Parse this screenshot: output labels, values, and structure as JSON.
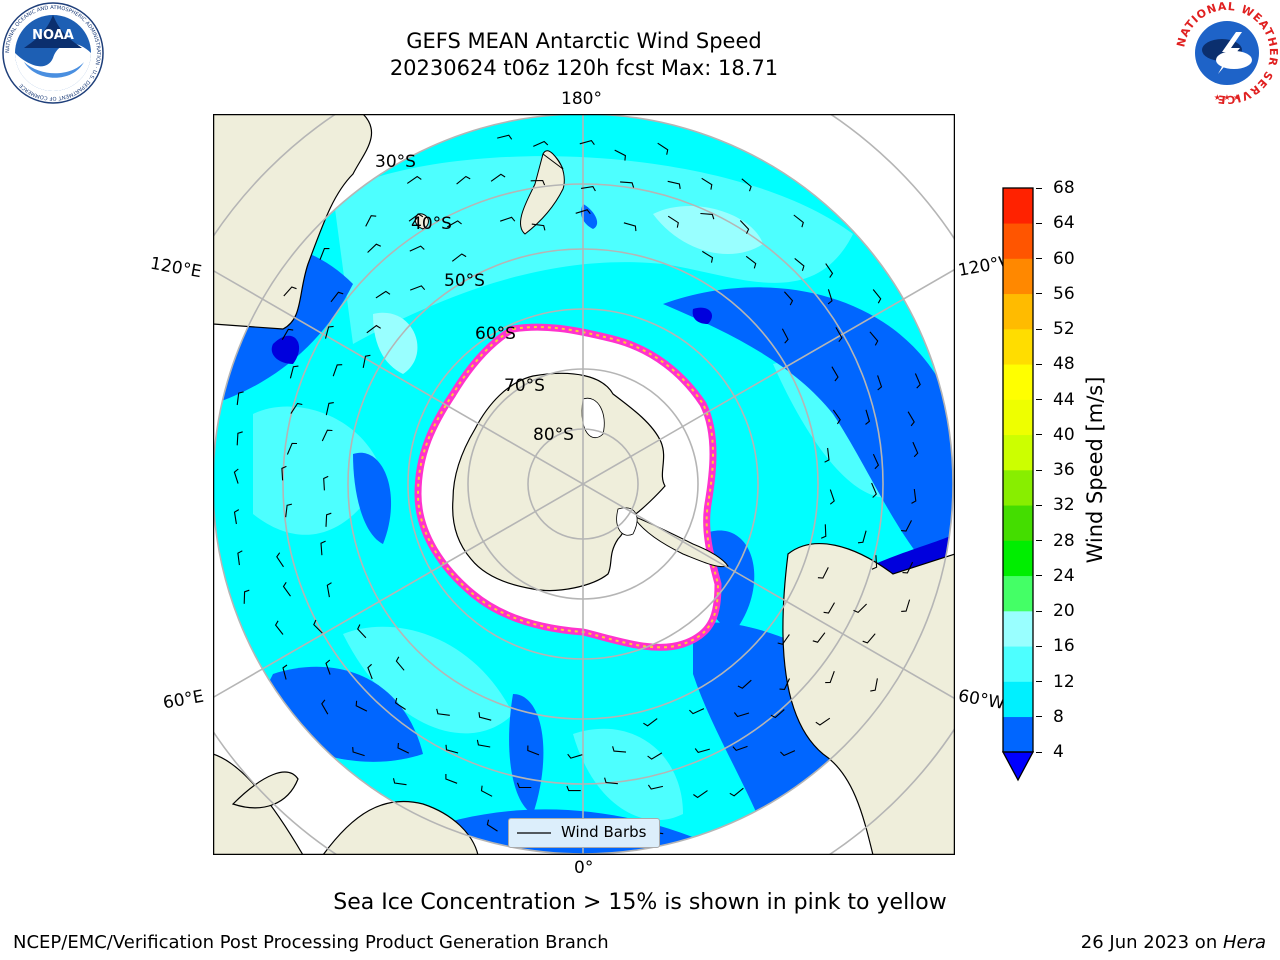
{
  "title": {
    "line1": "GEFS MEAN Antarctic Wind Speed",
    "line2": "20230624 t06z 120h fcst   Max: 18.71"
  },
  "map": {
    "projection": "south-polar-stereographic",
    "longitude_labels": {
      "top": "180°",
      "bottom": "0°",
      "upper_left": "120°E",
      "upper_right": "120°W",
      "lower_left": "60°E",
      "lower_right": "60°W"
    },
    "latitude_labels": [
      "30°S",
      "40°S",
      "50°S",
      "60°S",
      "70°S",
      "80°S"
    ],
    "colors": {
      "land": "#efeedb",
      "antarctica": "#efeedb",
      "sea_ice": "#ffffff",
      "wind_4_8": "#0066ff",
      "wind_8_12": "#00ffff",
      "wind_12_16": "#4dffff",
      "wind_16_20": "#99ffff",
      "ice_edge": "#ff33cc"
    }
  },
  "colorbar": {
    "label": "Wind Speed [m/s]",
    "ticks": [
      "4",
      "8",
      "12",
      "16",
      "20",
      "24",
      "28",
      "32",
      "36",
      "40",
      "44",
      "48",
      "52",
      "56",
      "60",
      "64",
      "68"
    ],
    "colors": [
      "#0066ff",
      "#00f0ff",
      "#4dffff",
      "#99ffff",
      "#44ff66",
      "#00ee00",
      "#44dd00",
      "#88ee00",
      "#ccff00",
      "#eeff00",
      "#ffff00",
      "#ffdd00",
      "#ffbb00",
      "#ff8800",
      "#ff5500",
      "#ff2200"
    ],
    "extend_color": "#0000ff"
  },
  "legend": {
    "label": "Wind Barbs"
  },
  "caption": "Sea Ice Concentration > 15% is shown in pink to yellow",
  "footer": {
    "left": "NCEP/EMC/Verification Post Processing Product Generation Branch",
    "right_date": "26 Jun 2023 on ",
    "right_host": "Hera"
  },
  "logos": {
    "left": "NOAA",
    "left_ring": "NATIONAL OCEANIC AND ATMOSPHERIC ADMINISTRATION · U.S. DEPARTMENT OF COMMERCE",
    "right_ring": "NATIONAL WEATHER SERVICE"
  }
}
